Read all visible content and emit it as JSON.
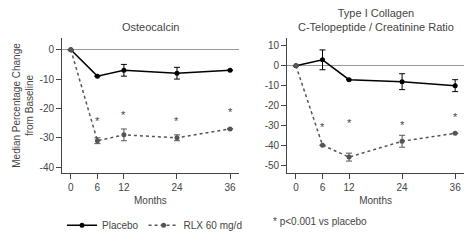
{
  "chart_data": [
    {
      "type": "line",
      "title": "Osteocalcin",
      "xlabel": "Months",
      "ylabel": "Median Percentage Change\nfrom Baseline",
      "x": [
        0,
        6,
        12,
        24,
        36
      ],
      "xlim": [
        -2,
        38
      ],
      "xticks": [
        0,
        6,
        12,
        24,
        36
      ],
      "ylim": [
        -42,
        4
      ],
      "yticks": [
        0,
        -10,
        -20,
        -30,
        -40
      ],
      "grid": false,
      "legend": "bottom left",
      "series": [
        {
          "name": "Placebo",
          "color": "#000000",
          "line_style": "solid",
          "marker": "circle",
          "values": [
            0,
            -9,
            -7,
            -8,
            -7
          ],
          "errors": [
            0,
            0,
            2,
            2,
            0
          ]
        },
        {
          "name": "RLX 60 mg/d",
          "color": "#555555",
          "line_style": "dot",
          "marker": "circle",
          "values": [
            0,
            -31,
            -29,
            -30,
            -27
          ],
          "errors": [
            0,
            1,
            2,
            1,
            0
          ]
        }
      ],
      "annotations": [
        {
          "x": 6,
          "y": -27,
          "text": "*"
        },
        {
          "x": 12,
          "y": -25,
          "text": "*"
        },
        {
          "x": 24,
          "y": -27,
          "text": "*"
        },
        {
          "x": 36,
          "y": -24,
          "text": "*"
        },
        {
          "text": "* p<0.001 vs placebo"
        }
      ]
    },
    {
      "type": "line",
      "title": "Type I Collagen\nC-Telopeptide / Creatinine Ratio",
      "xlabel": "Months",
      "x": [
        0,
        6,
        12,
        24,
        36
      ],
      "xlim": [
        -2,
        38
      ],
      "xticks": [
        0,
        6,
        12,
        24,
        36
      ],
      "ylim": [
        -54,
        14
      ],
      "yticks": [
        10,
        0,
        -10,
        -20,
        -30,
        -40,
        -50
      ],
      "grid": false,
      "series": [
        {
          "name": "Placebo",
          "color": "#000000",
          "line_style": "solid",
          "marker": "circle",
          "values": [
            0,
            3,
            -7,
            -8,
            -10
          ],
          "errors": [
            0,
            5,
            0,
            4,
            3
          ]
        },
        {
          "name": "RLX 60 mg/d",
          "color": "#555555",
          "line_style": "dot",
          "marker": "circle",
          "values": [
            0,
            -40,
            -46,
            -38,
            -34
          ],
          "errors": [
            0,
            0,
            2,
            3,
            0
          ]
        }
      ],
      "annotations": [
        {
          "x": 6,
          "y": -35,
          "text": "*"
        },
        {
          "x": 12,
          "y": -33,
          "text": "*"
        },
        {
          "x": 24,
          "y": -34,
          "text": "*"
        },
        {
          "x": 36,
          "y": -30,
          "text": "*"
        }
      ]
    }
  ]
}
